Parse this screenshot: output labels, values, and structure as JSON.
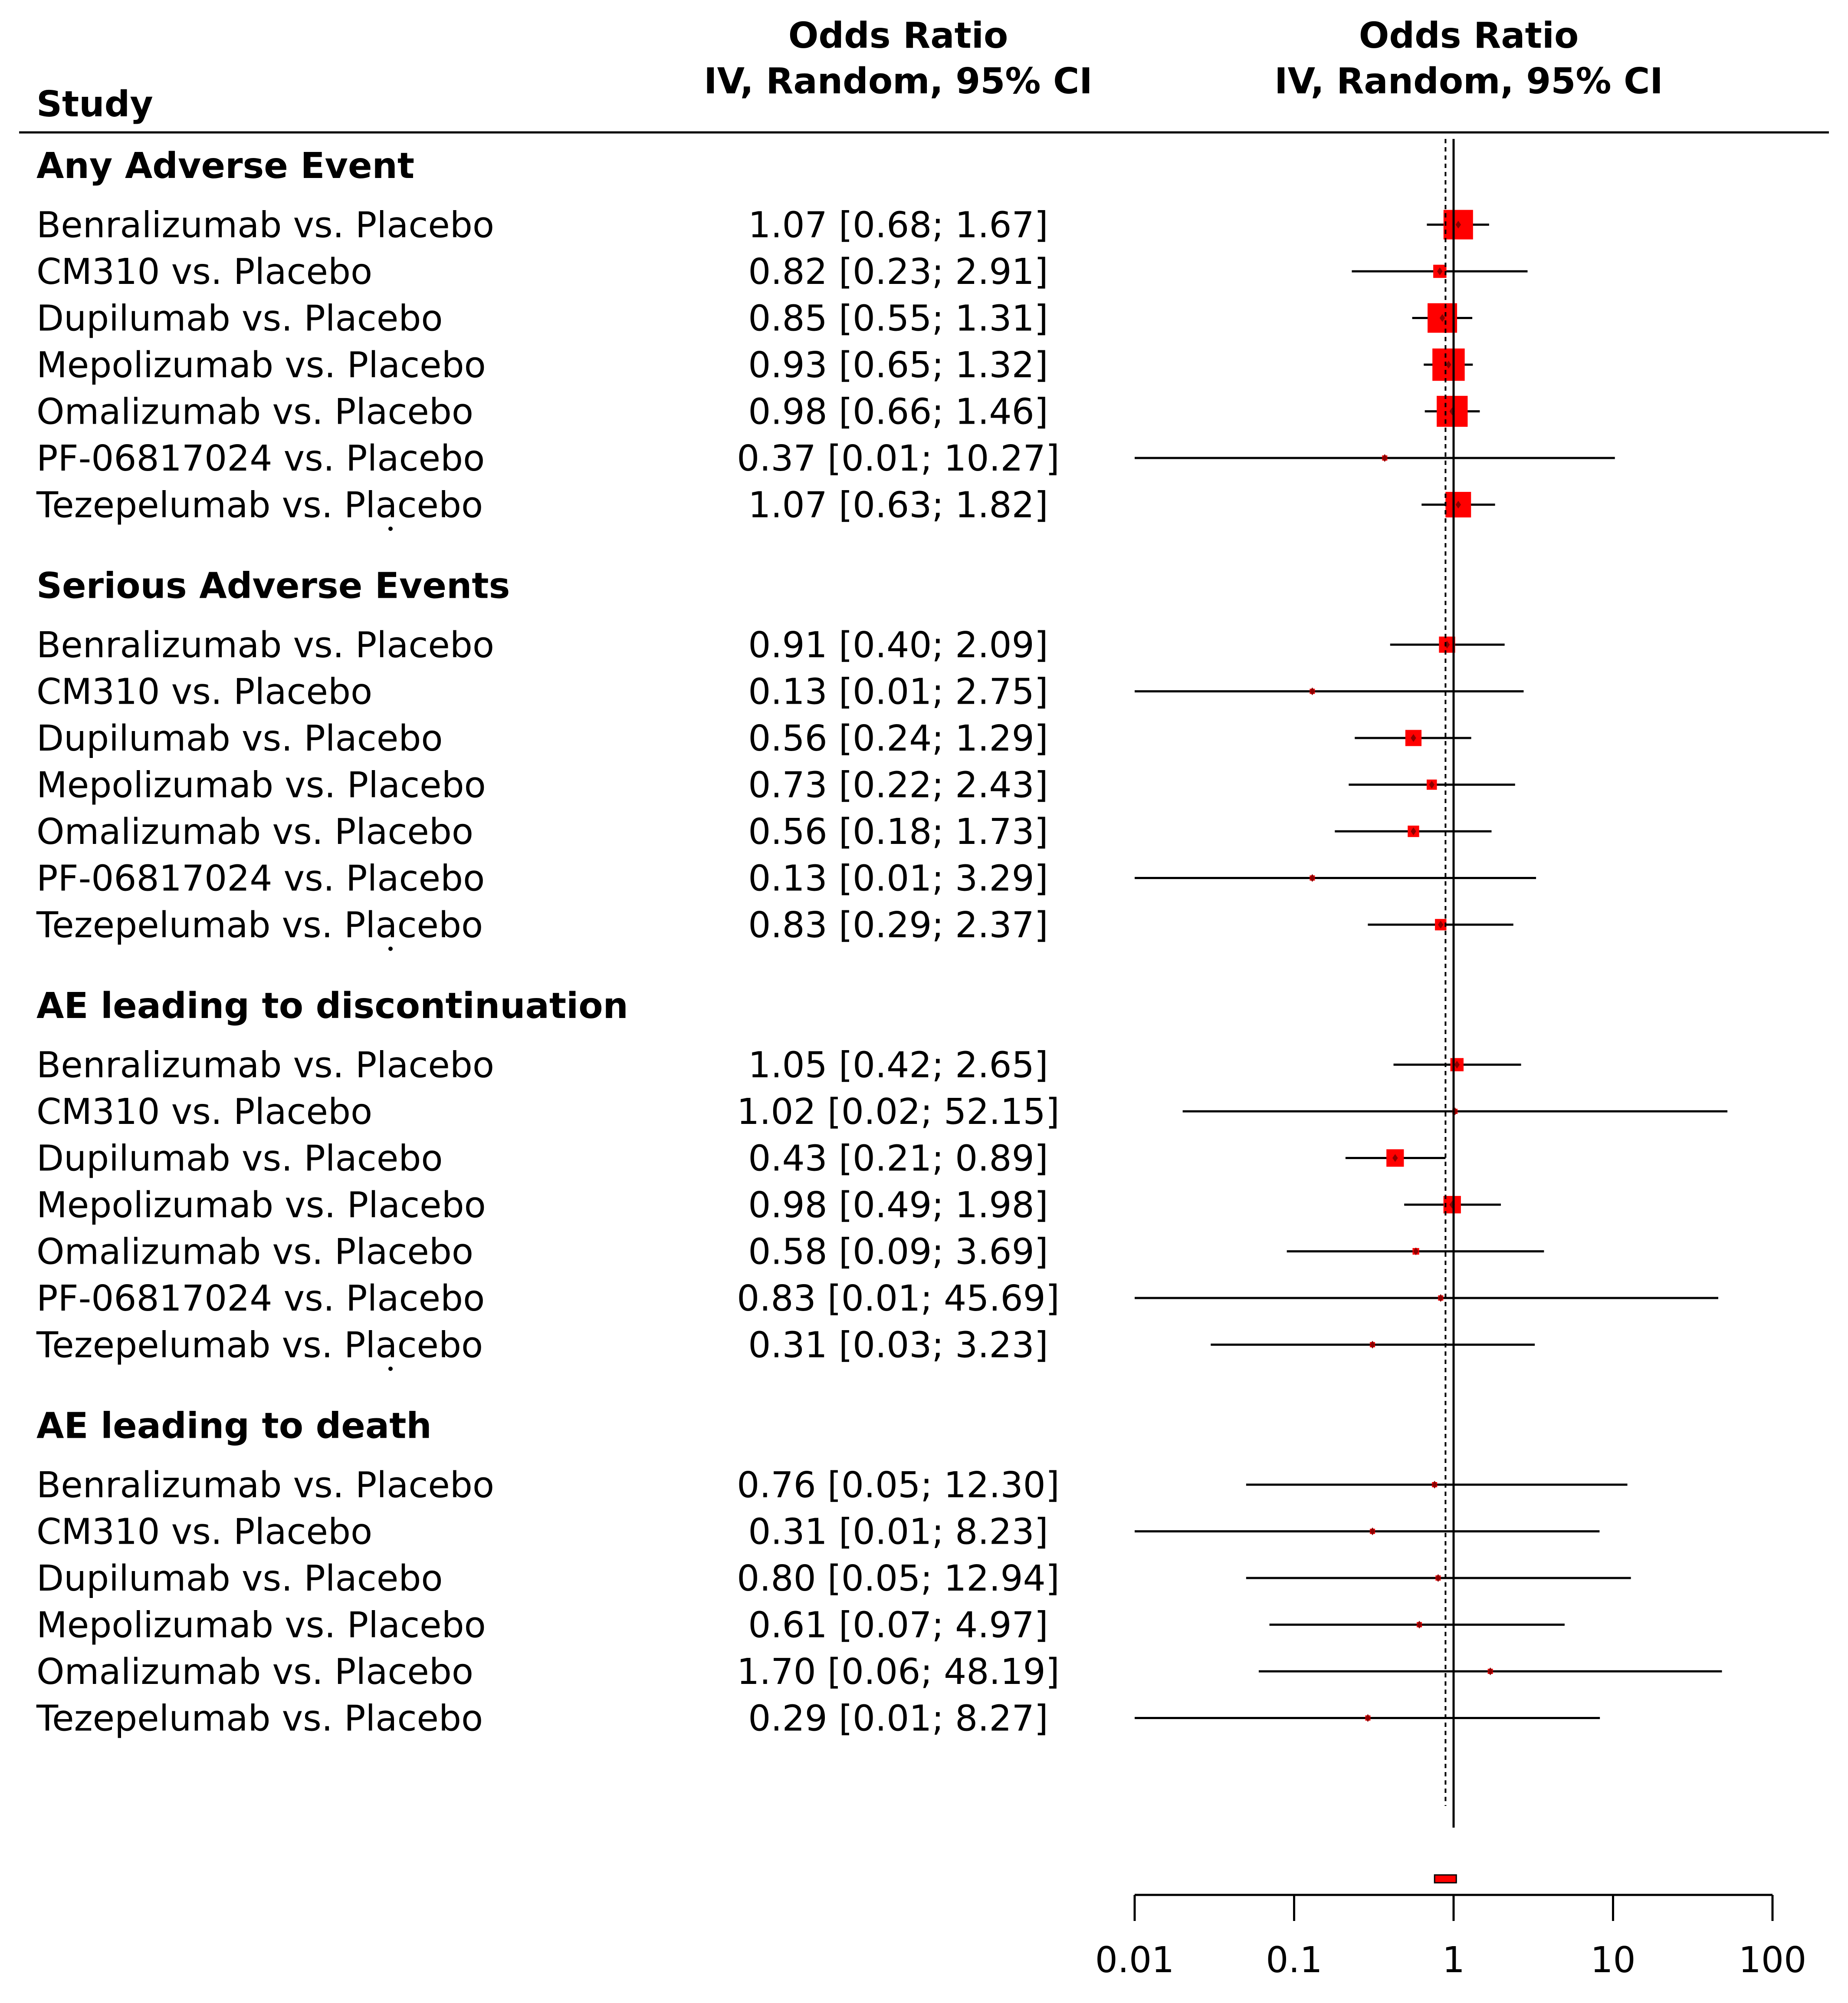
{
  "chart_data": {
    "type": "forest",
    "measure": "Odds Ratio",
    "method": "IV, Random, 95% CI",
    "header": {
      "study": "Study",
      "col_title": "Odds Ratio",
      "col_subtitle": "IV, Random, 95% CI",
      "plot_title": "Odds Ratio",
      "plot_subtitle": "IV, Random, 95% CI"
    },
    "x_scale": "log",
    "xlim": [
      0.01,
      100
    ],
    "ticks": [
      0.01,
      0.1,
      1,
      10,
      100
    ],
    "tick_labels": [
      "0.01",
      "0.1",
      "1",
      "10",
      "100"
    ],
    "reference_line": 1,
    "summary_line": 0.89,
    "summary": {
      "estimate": 0.89,
      "lower": 0.76,
      "upper": 1.04
    },
    "colors": {
      "box": "#ff0000",
      "point": "#8b0000",
      "line": "#000000"
    },
    "groups": [
      {
        "name": "Any Adverse Event",
        "studies": [
          {
            "label": "Benralizumab vs. Placebo",
            "ci_text": "1.07 [0.68; 1.67]",
            "or": 1.07,
            "lower": 0.68,
            "upper": 1.67,
            "weight": 1.0
          },
          {
            "label": "CM310 vs. Placebo",
            "ci_text": "0.82 [0.23; 2.91]",
            "or": 0.82,
            "lower": 0.23,
            "upper": 2.91,
            "weight": 0.2
          },
          {
            "label": "Dupilumab vs. Placebo",
            "ci_text": "0.85 [0.55; 1.31]",
            "or": 0.85,
            "lower": 0.55,
            "upper": 1.31,
            "weight": 1.0
          },
          {
            "label": "Mepolizumab vs. Placebo",
            "ci_text": "0.93 [0.65; 1.32]",
            "or": 0.93,
            "lower": 0.65,
            "upper": 1.32,
            "weight": 1.2
          },
          {
            "label": "Omalizumab vs. Placebo",
            "ci_text": "0.98 [0.66; 1.46]",
            "or": 0.98,
            "lower": 0.66,
            "upper": 1.46,
            "weight": 1.1
          },
          {
            "label": "PF-06817024 vs. Placebo",
            "ci_text": "0.37 [0.01; 10.27]",
            "or": 0.37,
            "lower": 0.01,
            "upper": 10.27,
            "weight": 0.02
          },
          {
            "label": "Tezepelumab vs. Placebo",
            "ci_text": "1.07 [0.63; 1.82]",
            "or": 1.07,
            "lower": 0.63,
            "upper": 1.82,
            "weight": 0.75
          }
        ]
      },
      {
        "name": "Serious Adverse Events",
        "studies": [
          {
            "label": "Benralizumab vs. Placebo",
            "ci_text": "0.91 [0.40; 2.09]",
            "or": 0.91,
            "lower": 0.4,
            "upper": 2.09,
            "weight": 0.3
          },
          {
            "label": "CM310 vs. Placebo",
            "ci_text": "0.13 [0.01; 2.75]",
            "or": 0.13,
            "lower": 0.01,
            "upper": 2.75,
            "weight": 0.02
          },
          {
            "label": "Dupilumab vs. Placebo",
            "ci_text": "0.56 [0.24; 1.29]",
            "or": 0.56,
            "lower": 0.24,
            "upper": 1.29,
            "weight": 0.3
          },
          {
            "label": "Mepolizumab vs. Placebo",
            "ci_text": "0.73 [0.22; 2.43]",
            "or": 0.73,
            "lower": 0.22,
            "upper": 2.43,
            "weight": 0.12
          },
          {
            "label": "Omalizumab vs. Placebo",
            "ci_text": "0.56 [0.18; 1.73]",
            "or": 0.56,
            "lower": 0.18,
            "upper": 1.73,
            "weight": 0.15
          },
          {
            "label": "PF-06817024 vs. Placebo",
            "ci_text": "0.13 [0.01; 3.29]",
            "or": 0.13,
            "lower": 0.01,
            "upper": 3.29,
            "weight": 0.02
          },
          {
            "label": "Tezepelumab vs. Placebo",
            "ci_text": "0.83 [0.29; 2.37]",
            "or": 0.83,
            "lower": 0.29,
            "upper": 2.37,
            "weight": 0.15
          }
        ]
      },
      {
        "name": "AE leading to discontinuation",
        "studies": [
          {
            "label": "Benralizumab vs. Placebo",
            "ci_text": "1.05 [0.42; 2.65]",
            "or": 1.05,
            "lower": 0.42,
            "upper": 2.65,
            "weight": 0.2
          },
          {
            "label": "CM310 vs. Placebo",
            "ci_text": "1.02 [0.02; 52.15]",
            "or": 1.02,
            "lower": 0.02,
            "upper": 52.15,
            "weight": 0.01
          },
          {
            "label": "Dupilumab vs. Placebo",
            "ci_text": "0.43 [0.21; 0.89]",
            "or": 0.43,
            "lower": 0.21,
            "upper": 0.89,
            "weight": 0.35
          },
          {
            "label": "Mepolizumab vs. Placebo",
            "ci_text": "0.98 [0.49; 1.98]",
            "or": 0.98,
            "lower": 0.49,
            "upper": 1.98,
            "weight": 0.35
          },
          {
            "label": "Omalizumab vs. Placebo",
            "ci_text": "0.58 [0.09; 3.69]",
            "or": 0.58,
            "lower": 0.09,
            "upper": 3.69,
            "weight": 0.05
          },
          {
            "label": "PF-06817024 vs. Placebo",
            "ci_text": "0.83 [0.01; 45.69]",
            "or": 0.83,
            "lower": 0.01,
            "upper": 45.69,
            "weight": 0.01
          },
          {
            "label": "Tezepelumab vs. Placebo",
            "ci_text": "0.31 [0.03; 3.23]",
            "or": 0.31,
            "lower": 0.03,
            "upper": 3.23,
            "weight": 0.03
          }
        ]
      },
      {
        "name": "AE leading to death",
        "studies": [
          {
            "label": "Benralizumab vs. Placebo",
            "ci_text": "0.76 [0.05; 12.30]",
            "or": 0.76,
            "lower": 0.05,
            "upper": 12.3,
            "weight": 0.02
          },
          {
            "label": "CM310 vs. Placebo",
            "ci_text": "0.31 [0.01; 8.23]",
            "or": 0.31,
            "lower": 0.01,
            "upper": 8.23,
            "weight": 0.02
          },
          {
            "label": "Dupilumab vs. Placebo",
            "ci_text": "0.80 [0.05; 12.94]",
            "or": 0.8,
            "lower": 0.05,
            "upper": 12.94,
            "weight": 0.02
          },
          {
            "label": "Mepolizumab vs. Placebo",
            "ci_text": "0.61 [0.07; 4.97]",
            "or": 0.61,
            "lower": 0.07,
            "upper": 4.97,
            "weight": 0.03
          },
          {
            "label": "Omalizumab vs. Placebo",
            "ci_text": "1.70 [0.06; 48.19]",
            "or": 1.7,
            "lower": 0.06,
            "upper": 48.19,
            "weight": 0.02
          },
          {
            "label": "Tezepelumab vs. Placebo",
            "ci_text": "0.29 [0.01; 8.27]",
            "or": 0.29,
            "lower": 0.01,
            "upper": 8.27,
            "weight": 0.02
          }
        ]
      }
    ]
  }
}
